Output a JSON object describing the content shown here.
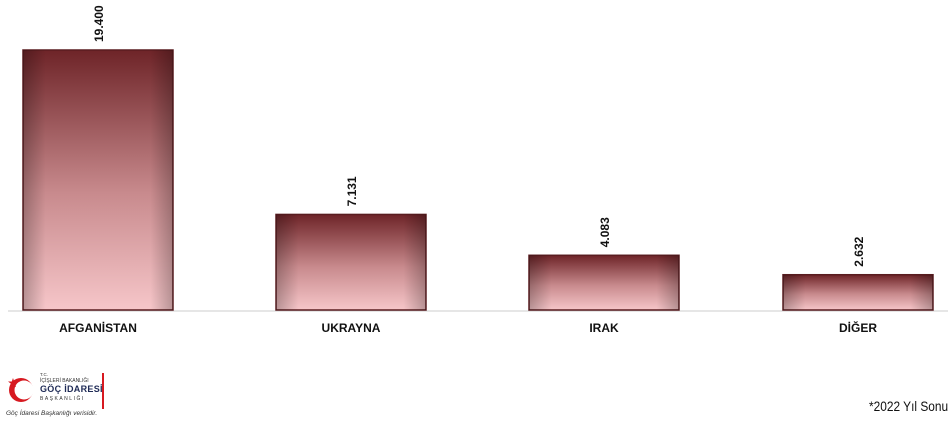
{
  "chart_data": {
    "type": "bar",
    "categories": [
      "AFGANİSTAN",
      "UKRAYNA",
      "IRAK",
      "DİĞER"
    ],
    "values": [
      19400,
      7131,
      4083,
      2632
    ],
    "value_labels": [
      "19.400",
      "7.131",
      "4.083",
      "2.632"
    ],
    "title": "",
    "xlabel": "",
    "ylabel": "",
    "ylim": [
      0,
      19400
    ],
    "grid": false,
    "legend": "none"
  },
  "colors": {
    "bar_top": "#7a2a2e",
    "bar_bottom": "#f3c0c3",
    "bar_edge": "#5a1d20",
    "axis": "#cccccc"
  },
  "logo": {
    "line1": "T.C.",
    "line2": "İÇİŞLERİ BAKANLIĞI",
    "line3": "GÖÇ İDARESİ",
    "line4": "BAŞKANLIĞI",
    "caption": "Göç İdaresi Başkanlığı verisidir.",
    "icon": "crescent-star-icon"
  },
  "footnote": "*2022 Yıl Sonu"
}
